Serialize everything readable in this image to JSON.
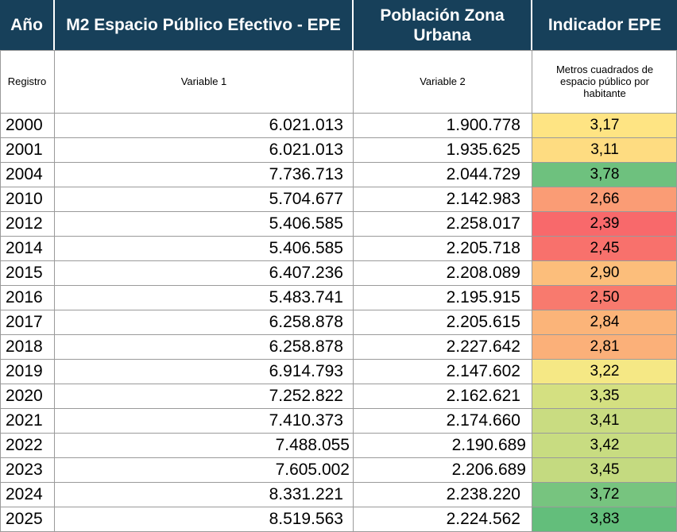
{
  "headers": {
    "year": "Año",
    "epe": "M2 Espacio Público Efectivo - EPE",
    "population": "Población Zona Urbana",
    "indicator": "Indicador EPE"
  },
  "subheaders": {
    "year": "Registro",
    "epe": "Variable 1",
    "population": "Variable 2",
    "indicator": "Metros cuadrados de espacio público por habitante"
  },
  "colors": {
    "header_bg": "#17405a",
    "header_text": "#ffffff",
    "grid": "#9a9a9a"
  },
  "rows": [
    {
      "year": "2000",
      "epe": "6.021.013",
      "population": "1.900.778",
      "indicator": "3,17",
      "color": "#fee483"
    },
    {
      "year": "2001",
      "epe": "6.021.013",
      "population": "1.935.625",
      "indicator": "3,11",
      "color": "#fedc81"
    },
    {
      "year": "2004",
      "epe": "7.736.713",
      "population": "2.044.729",
      "indicator": "3,78",
      "color": "#6ec17e"
    },
    {
      "year": "2010",
      "epe": "5.704.677",
      "population": "2.142.983",
      "indicator": "2,66",
      "color": "#fa9c75"
    },
    {
      "year": "2012",
      "epe": "5.406.585",
      "population": "2.258.017",
      "indicator": "2,39",
      "color": "#f8696b"
    },
    {
      "year": "2014",
      "epe": "5.406.585",
      "population": "2.205.718",
      "indicator": "2,45",
      "color": "#f8716c"
    },
    {
      "year": "2015",
      "epe": "6.407.236",
      "population": "2.208.089",
      "indicator": "2,90",
      "color": "#fcbe7b"
    },
    {
      "year": "2016",
      "epe": "5.483.741",
      "population": "2.195.915",
      "indicator": "2,50",
      "color": "#f87a6e"
    },
    {
      "year": "2017",
      "epe": "6.258.878",
      "population": "2.205.615",
      "indicator": "2,84",
      "color": "#fbb479"
    },
    {
      "year": "2018",
      "epe": "6.258.878",
      "population": "2.227.642",
      "indicator": "2,81",
      "color": "#fbb079"
    },
    {
      "year": "2019",
      "epe": "6.914.793",
      "population": "2.147.602",
      "indicator": "3,22",
      "color": "#f5e885"
    },
    {
      "year": "2020",
      "epe": "7.252.822",
      "population": "2.162.621",
      "indicator": "3,35",
      "color": "#d4e081"
    },
    {
      "year": "2021",
      "epe": "7.410.373",
      "population": "2.174.660",
      "indicator": "3,41",
      "color": "#c9dc81"
    },
    {
      "year": "2022",
      "epe": "7.488.055",
      "population": "2.190.689",
      "indicator": "3,42",
      "color": "#c8dc81"
    },
    {
      "year": "2023",
      "epe": "7.605.002",
      "population": "2.206.689",
      "indicator": "3,45",
      "color": "#c4da80"
    },
    {
      "year": "2024",
      "epe": "8.331.221",
      "population": "2.238.220",
      "indicator": "3,72",
      "color": "#77c47f"
    },
    {
      "year": "2025",
      "epe": "8.519.563",
      "population": "2.224.562",
      "indicator": "3,83",
      "color": "#63be7b"
    }
  ]
}
